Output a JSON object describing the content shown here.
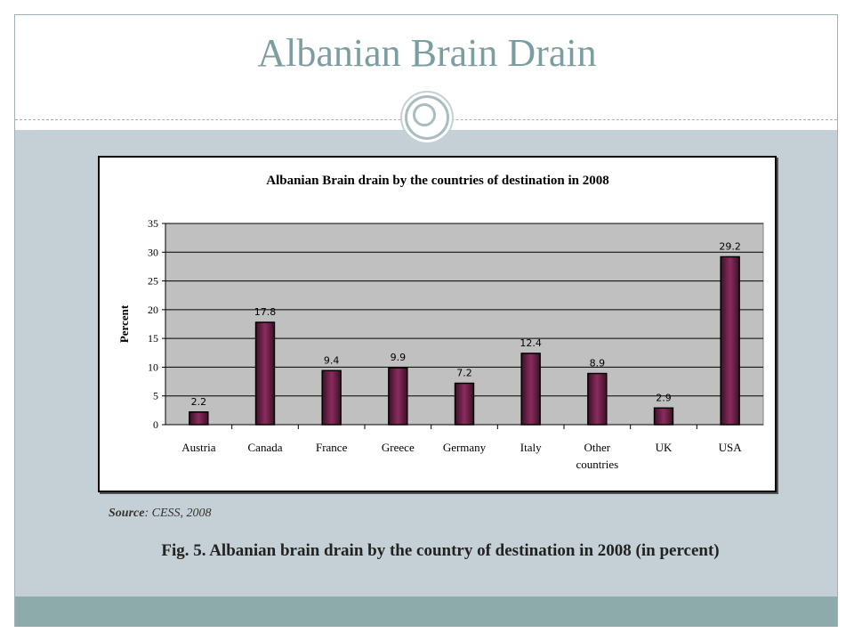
{
  "slide": {
    "title": "Albanian Brain Drain",
    "source_label": "Source",
    "source_text": ": CESS, 2008",
    "caption": "Fig. 5. Albanian brain drain by the country of destination in 2008 (in percent)"
  },
  "colors": {
    "bar_fill": "#8b2d5c",
    "plot_bg": "#c0c0c0",
    "title_color": "#7d9ea1",
    "body_bg": "#c5d0d6"
  },
  "chart_data": {
    "type": "bar",
    "title": "Albanian Brain drain by the countries of destination in 2008",
    "ylabel": "Percent",
    "xlabel": "",
    "ylim": [
      0,
      35
    ],
    "yticks": [
      0,
      5,
      10,
      15,
      20,
      25,
      30,
      35
    ],
    "categories": [
      "Austria",
      "Canada",
      "France",
      "Greece",
      "Germany",
      "Italy",
      "Other countries",
      "UK",
      "USA"
    ],
    "values": [
      2.2,
      17.8,
      9.4,
      9.9,
      7.2,
      12.4,
      8.9,
      2.9,
      29.2
    ],
    "data_labels": [
      "2.2",
      "17.8",
      "9.4",
      "9.9",
      "7.2",
      "12.4",
      "8.9",
      "2.9",
      "29.2"
    ],
    "grid": true,
    "legend": "none"
  }
}
